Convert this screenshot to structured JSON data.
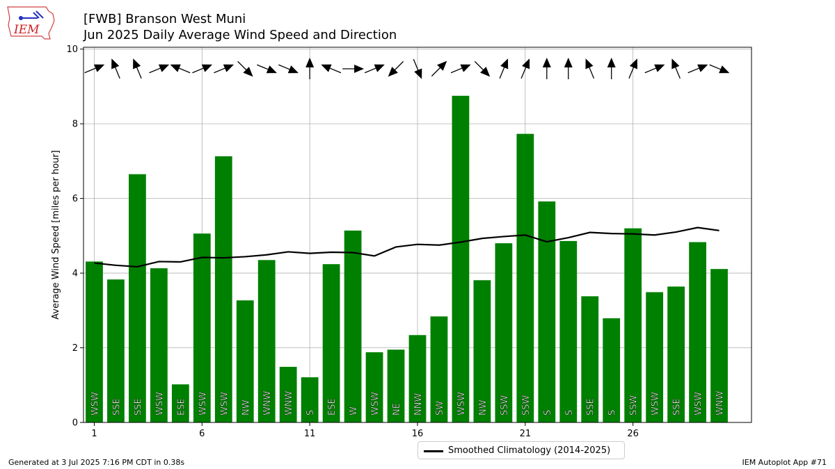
{
  "header": {
    "title_line1": "[FWB] Branson West Muni",
    "title_line2": "Jun 2025 Daily Average Wind Speed and Direction"
  },
  "logo": {
    "text": "IEM"
  },
  "footer": {
    "generated": "Generated at 3 Jul 2025 7:16 PM CDT in 0.38s",
    "app": "IEM Autoplot App #71"
  },
  "legend": {
    "climatology_label": "Smoothed Climatology (2014-2025)"
  },
  "colors": {
    "bar": "#008000",
    "line": "#000000",
    "grid": "#b0b0b0"
  },
  "chart_data": {
    "type": "bar",
    "ylabel": "Average Wind Speed [miles per hour]",
    "xlabel": "",
    "xlim": [
      0.5,
      31.5
    ],
    "ylim": [
      0,
      10.05
    ],
    "xticks": [
      1,
      6,
      11,
      16,
      21,
      26
    ],
    "yticks": [
      0,
      2,
      4,
      6,
      8,
      10
    ],
    "grid": true,
    "days": [
      1,
      2,
      3,
      4,
      5,
      6,
      7,
      8,
      9,
      10,
      11,
      12,
      13,
      14,
      15,
      16,
      17,
      18,
      19,
      20,
      21,
      22,
      23,
      24,
      25,
      26,
      27,
      28,
      29,
      30
    ],
    "speed": [
      4.31,
      3.83,
      6.65,
      4.13,
      1.02,
      5.06,
      7.13,
      3.27,
      4.35,
      1.49,
      1.21,
      4.24,
      5.14,
      1.88,
      1.95,
      2.34,
      2.84,
      8.75,
      3.81,
      4.8,
      7.73,
      5.92,
      4.86,
      3.38,
      2.79,
      5.2,
      3.49,
      3.64,
      4.83,
      4.11
    ],
    "direction_label": [
      "WSW",
      "SSE",
      "SSE",
      "WSW",
      "ESE",
      "WSW",
      "WSW",
      "NW",
      "WNW",
      "WNW",
      "S",
      "ESE",
      "W",
      "WSW",
      "NE",
      "NNW",
      "SW",
      "WSW",
      "NW",
      "SSW",
      "SSW",
      "S",
      "S",
      "SSE",
      "S",
      "SSW",
      "WSW",
      "SSE",
      "WSW",
      "WNW"
    ],
    "arrow_toward_deg": [
      67.5,
      337.5,
      337.5,
      67.5,
      292.5,
      67.5,
      67.5,
      135,
      112.5,
      112.5,
      0,
      292.5,
      90,
      67.5,
      225,
      157.5,
      45,
      67.5,
      135,
      22.5,
      22.5,
      0,
      0,
      337.5,
      0,
      22.5,
      67.5,
      337.5,
      67.5,
      112.5
    ],
    "series": [
      {
        "name": "Smoothed Climatology (2014-2025)",
        "type": "line",
        "values": [
          4.27,
          4.21,
          4.17,
          4.31,
          4.3,
          4.42,
          4.41,
          4.44,
          4.49,
          4.57,
          4.53,
          4.56,
          4.55,
          4.46,
          4.7,
          4.77,
          4.75,
          4.83,
          4.93,
          4.98,
          5.02,
          4.84,
          4.95,
          5.09,
          5.06,
          5.05,
          5.02,
          5.1,
          5.22,
          5.14
        ]
      }
    ]
  }
}
